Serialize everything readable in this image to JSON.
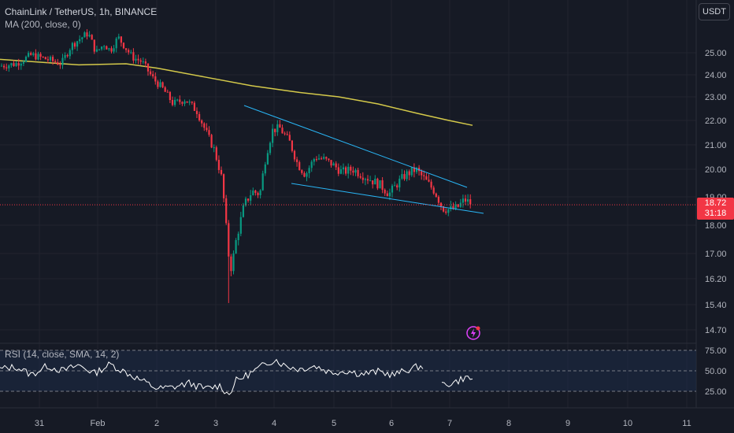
{
  "header": {
    "symbol_title": "ChainLink / TetherUS, 1h, BINANCE",
    "ma_legend": "MA (200, close, 0)",
    "rsi_legend": "RSI (14, close, SMA, 14, 2)",
    "currency_button": "USDT"
  },
  "last_price": {
    "price": "18.72",
    "countdown": "31:18",
    "color": "#f23645"
  },
  "price_axis": {
    "labels": [
      "25.00",
      "24.00",
      "23.00",
      "22.00",
      "21.00",
      "20.00",
      "19.00",
      "18.00",
      "17.00",
      "16.20",
      "15.40",
      "14.70"
    ],
    "values": [
      25.0,
      24.0,
      23.0,
      22.0,
      21.0,
      20.0,
      19.0,
      18.0,
      17.0,
      16.2,
      15.4,
      14.7
    ]
  },
  "rsi_axis": {
    "labels": [
      "75.00",
      "50.00",
      "25.00"
    ],
    "values": [
      75,
      50,
      25
    ]
  },
  "time_axis": {
    "labels": [
      "31",
      "Feb",
      "2",
      "3",
      "4",
      "5",
      "6",
      "7",
      "8",
      "9",
      "10",
      "11"
    ]
  },
  "colors": {
    "background": "#161a25",
    "grid": "#212430",
    "up_candle": "#089981",
    "down_candle": "#f23645",
    "ma_line": "#d4c94a",
    "trendline": "#29b6f6",
    "rsi_line": "#ffffff",
    "rsi_band": "#1c2a44"
  },
  "icons": {
    "indicator_icon": "lightning-bolt-icon"
  }
}
